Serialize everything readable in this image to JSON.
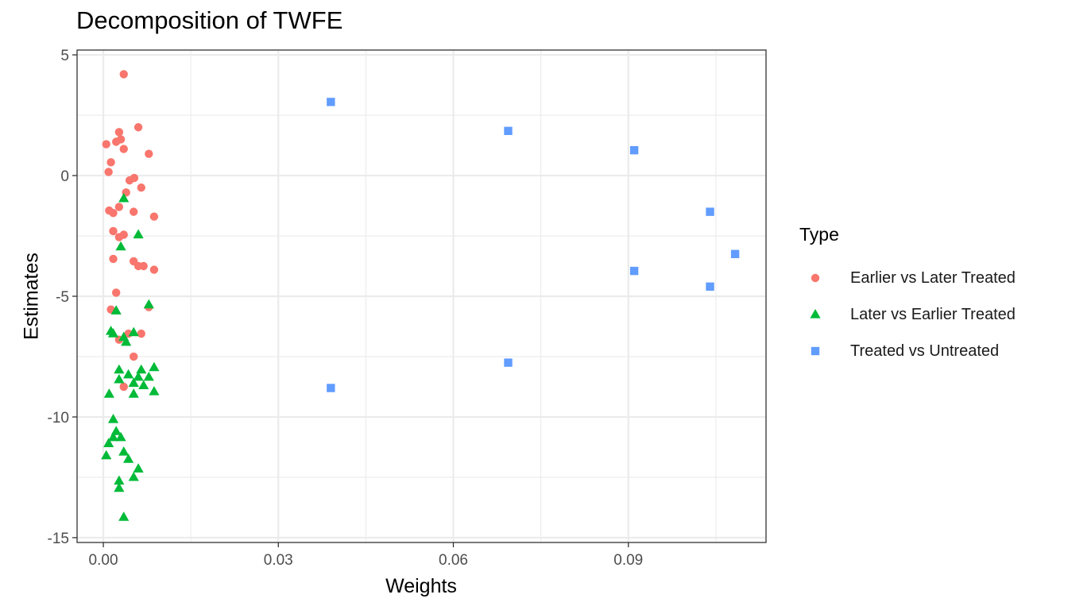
{
  "chart_data": {
    "type": "scatter",
    "title": "Decomposition of TWFE",
    "xlabel": "Weights",
    "ylabel": "Estimates",
    "xlim": [
      -0.0045,
      0.1136
    ],
    "ylim": [
      -15.2,
      5.2
    ],
    "xticks": [
      0.0,
      0.03,
      0.06,
      0.09
    ],
    "xtick_labels": [
      "0.00",
      "0.03",
      "0.06",
      "0.09"
    ],
    "yticks": [
      -15,
      -10,
      -5,
      0,
      5
    ],
    "ytick_labels": [
      "-15",
      "-10",
      "-5",
      "0",
      "5"
    ],
    "x_minor": [
      0.015,
      0.045,
      0.075,
      0.105
    ],
    "y_minor": [
      -12.5,
      -7.5,
      -2.5,
      2.5
    ],
    "grid": true,
    "legend": {
      "title": "Type",
      "position": "right"
    },
    "series": [
      {
        "name": "Earlier vs Later Treated",
        "marker": "circle",
        "color": "#F8766D",
        "points": [
          [
            0.0035,
            4.2
          ],
          [
            0.006,
            2.0
          ],
          [
            0.0027,
            1.8
          ],
          [
            0.003,
            1.5
          ],
          [
            0.0022,
            1.4
          ],
          [
            0.0005,
            1.3
          ],
          [
            0.0035,
            1.1
          ],
          [
            0.0078,
            0.9
          ],
          [
            0.0013,
            0.55
          ],
          [
            0.0009,
            0.15
          ],
          [
            0.0053,
            -0.1
          ],
          [
            0.0045,
            -0.2
          ],
          [
            0.0065,
            -0.5
          ],
          [
            0.0039,
            -0.7
          ],
          [
            0.0027,
            -1.3
          ],
          [
            0.001,
            -1.45
          ],
          [
            0.0017,
            -1.55
          ],
          [
            0.0052,
            -1.5
          ],
          [
            0.0087,
            -1.7
          ],
          [
            0.0017,
            -2.3
          ],
          [
            0.0035,
            -2.45
          ],
          [
            0.0027,
            -2.55
          ],
          [
            0.0017,
            -3.45
          ],
          [
            0.0052,
            -3.55
          ],
          [
            0.006,
            -3.75
          ],
          [
            0.0069,
            -3.75
          ],
          [
            0.0087,
            -3.9
          ],
          [
            0.0022,
            -4.85
          ],
          [
            0.0078,
            -5.45
          ],
          [
            0.0013,
            -5.55
          ],
          [
            0.0043,
            -6.55
          ],
          [
            0.0065,
            -6.55
          ],
          [
            0.0027,
            -6.8
          ],
          [
            0.0052,
            -7.5
          ],
          [
            0.0035,
            -8.75
          ]
        ]
      },
      {
        "name": "Later vs Earlier Treated",
        "marker": "triangle",
        "color": "#00BA38",
        "points": [
          [
            0.0035,
            -0.95
          ],
          [
            0.006,
            -2.45
          ],
          [
            0.003,
            -2.95
          ],
          [
            0.0078,
            -5.35
          ],
          [
            0.0022,
            -5.6
          ],
          [
            0.0013,
            -6.45
          ],
          [
            0.0017,
            -6.55
          ],
          [
            0.0052,
            -6.5
          ],
          [
            0.0035,
            -6.7
          ],
          [
            0.0039,
            -6.9
          ],
          [
            0.0087,
            -7.95
          ],
          [
            0.0027,
            -8.05
          ],
          [
            0.0065,
            -8.05
          ],
          [
            0.0043,
            -8.25
          ],
          [
            0.006,
            -8.35
          ],
          [
            0.0078,
            -8.35
          ],
          [
            0.0027,
            -8.45
          ],
          [
            0.0052,
            -8.6
          ],
          [
            0.0069,
            -8.7
          ],
          [
            0.0087,
            -8.95
          ],
          [
            0.001,
            -9.05
          ],
          [
            0.0052,
            -9.05
          ],
          [
            0.0017,
            -10.1
          ],
          [
            0.0022,
            -10.6
          ],
          [
            0.003,
            -10.85
          ],
          [
            0.0017,
            -10.85
          ],
          [
            0.0009,
            -11.1
          ],
          [
            0.0035,
            -11.45
          ],
          [
            0.0005,
            -11.6
          ],
          [
            0.0043,
            -11.75
          ],
          [
            0.006,
            -12.15
          ],
          [
            0.0052,
            -12.5
          ],
          [
            0.0027,
            -12.65
          ],
          [
            0.0027,
            -12.95
          ],
          [
            0.0035,
            -14.15
          ]
        ]
      },
      {
        "name": "Treated vs Untreated",
        "marker": "square",
        "color": "#619CFF",
        "points": [
          [
            0.039,
            3.05
          ],
          [
            0.0694,
            1.85
          ],
          [
            0.091,
            1.05
          ],
          [
            0.104,
            -1.5
          ],
          [
            0.1083,
            -3.25
          ],
          [
            0.091,
            -3.95
          ],
          [
            0.104,
            -4.6
          ],
          [
            0.0694,
            -7.75
          ],
          [
            0.039,
            -8.8
          ]
        ]
      }
    ]
  }
}
